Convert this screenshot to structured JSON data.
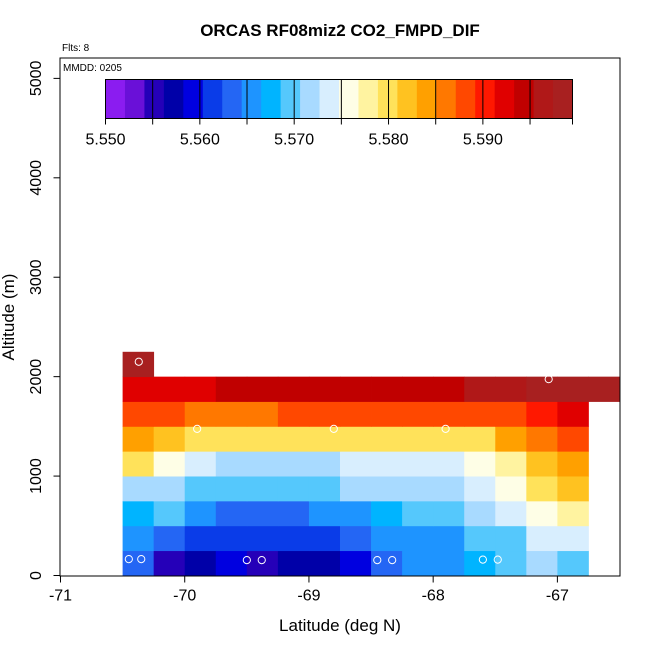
{
  "chart_data": {
    "type": "heatmap",
    "title": "ORCAS RF08miz2 CO2_FMPD_DIF",
    "annotations": {
      "flights": "Flts: 8",
      "mmdd": "MMDD: 0205"
    },
    "xlabel": "Latitude (deg N)",
    "ylabel": "Altitude (m)",
    "xlim": [
      -71,
      -66.5
    ],
    "ylim": [
      0,
      5200
    ],
    "x_ticks": [
      -71,
      -70,
      -69,
      -68,
      -67
    ],
    "x_tick_labels": [
      "-71",
      "-70",
      "-69",
      "-68",
      "-67"
    ],
    "y_ticks": [
      0,
      1000,
      2000,
      3000,
      4000,
      5000
    ],
    "y_tick_labels": [
      "0",
      "1000",
      "2000",
      "3000",
      "4000",
      "5000"
    ],
    "colorbar": {
      "min": 5.55,
      "max": 5.5995,
      "ticks": [
        5.55,
        5.56,
        5.57,
        5.58,
        5.59
      ],
      "tick_labels": [
        "5.550",
        "5.560",
        "5.570",
        "5.580",
        "5.590"
      ],
      "band_edges": [
        5.55,
        5.555,
        5.56,
        5.565,
        5.57,
        5.575,
        5.58,
        5.585,
        5.59,
        5.595,
        5.5995
      ],
      "colors": [
        "#8b1cf0",
        "#6a10d8",
        "#2500b8",
        "#0000a8",
        "#0000e0",
        "#0a3ce8",
        "#2466f4",
        "#1e94ff",
        "#00b4ff",
        "#55c8fc",
        "#a8daff",
        "#d8eefe",
        "#fefee6",
        "#fff3a0",
        "#ffe25a",
        "#ffc220",
        "#ffa000",
        "#ff7800",
        "#ff4800",
        "#ff1800",
        "#e00000",
        "#c00000",
        "#b01818",
        "#a82020"
      ]
    },
    "cell_width_deg": 0.25,
    "cell_height_m": 250,
    "rows": [
      {
        "alt": [
          0,
          250
        ],
        "lat_start": -70.5,
        "values": [
          5.5625,
          5.555,
          5.557,
          5.5585,
          5.5552,
          5.5562,
          5.558,
          5.56,
          5.5625,
          5.5645,
          5.5665,
          5.568,
          5.5695,
          5.571,
          5.57
        ]
      },
      {
        "alt": [
          250,
          500
        ],
        "lat_start": -70.5,
        "values": [
          5.5655,
          5.564,
          5.562,
          5.5605,
          5.5605,
          5.5615,
          5.5615,
          5.5625,
          5.5645,
          5.5655,
          5.5665,
          5.57,
          5.5705,
          5.573,
          5.5735
        ]
      },
      {
        "alt": [
          500,
          750
        ],
        "lat_start": -70.5,
        "values": [
          5.5675,
          5.5695,
          5.565,
          5.564,
          5.564,
          5.564,
          5.565,
          5.5655,
          5.568,
          5.569,
          5.569,
          5.572,
          5.5735,
          5.576,
          5.577
        ]
      },
      {
        "alt": [
          750,
          1000
        ],
        "lat_start": -70.5,
        "values": [
          5.5725,
          5.5715,
          5.569,
          5.5695,
          5.5695,
          5.5695,
          5.57,
          5.5715,
          5.571,
          5.571,
          5.571,
          5.5735,
          5.5765,
          5.5795,
          5.5815
        ]
      },
      {
        "alt": [
          1000,
          1250
        ],
        "lat_start": -70.5,
        "values": [
          5.58,
          5.576,
          5.573,
          5.5725,
          5.5725,
          5.5725,
          5.5725,
          5.5735,
          5.5745,
          5.5745,
          5.5745,
          5.576,
          5.5775,
          5.581,
          5.5835
        ]
      },
      {
        "alt": [
          1250,
          1500
        ],
        "lat_start": -70.5,
        "values": [
          5.584,
          5.5825,
          5.5795,
          5.579,
          5.579,
          5.579,
          5.579,
          5.579,
          5.579,
          5.579,
          5.579,
          5.579,
          5.5835,
          5.586,
          5.5875
        ]
      },
      {
        "alt": [
          1500,
          1750
        ],
        "lat_start": -70.5,
        "values": [
          5.5875,
          5.5875,
          5.5865,
          5.587,
          5.5865,
          5.5875,
          5.588,
          5.5885,
          5.5885,
          5.5885,
          5.5885,
          5.5885,
          5.589,
          5.591,
          5.5915
        ]
      },
      {
        "alt": [
          1750,
          2000
        ],
        "lat_start": -70.5,
        "values": [
          5.5925,
          5.5925,
          5.593,
          5.5935,
          5.5935,
          5.5935,
          5.594,
          5.594,
          5.5945,
          5.595,
          5.595,
          5.5955,
          5.597,
          5.5975,
          5.598,
          5.5985
        ]
      },
      {
        "alt": [
          2000,
          2250
        ],
        "lat_start": -70.5,
        "values": [
          5.599
        ]
      }
    ],
    "flight_points": [
      {
        "lat": -70.45,
        "alt": 165
      },
      {
        "lat": -70.35,
        "alt": 165
      },
      {
        "lat": -69.5,
        "alt": 155
      },
      {
        "lat": -69.38,
        "alt": 155
      },
      {
        "lat": -68.45,
        "alt": 155
      },
      {
        "lat": -68.33,
        "alt": 155
      },
      {
        "lat": -67.6,
        "alt": 160
      },
      {
        "lat": -67.48,
        "alt": 160
      },
      {
        "lat": -69.9,
        "alt": 1475
      },
      {
        "lat": -68.8,
        "alt": 1475
      },
      {
        "lat": -67.9,
        "alt": 1475
      },
      {
        "lat": -70.37,
        "alt": 2150
      },
      {
        "lat": -67.07,
        "alt": 1975
      }
    ]
  }
}
